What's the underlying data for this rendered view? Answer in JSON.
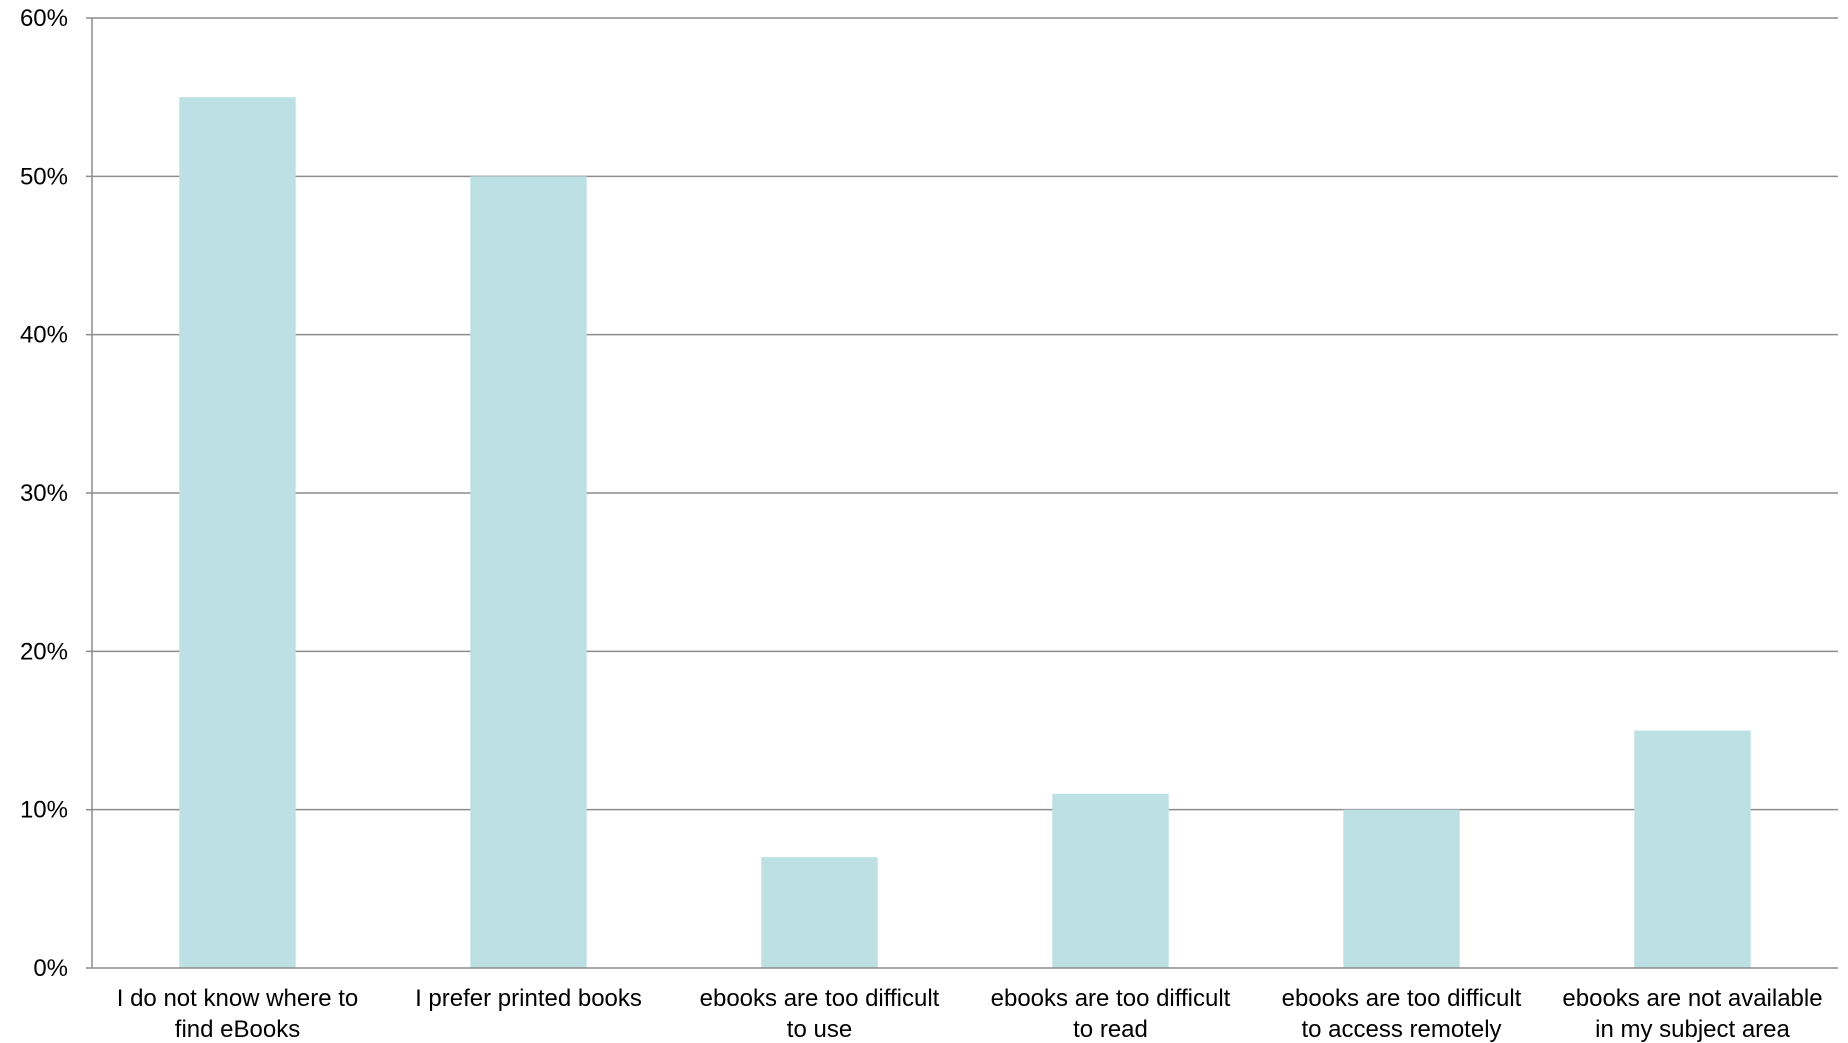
{
  "chart_data": {
    "type": "bar",
    "categories": [
      [
        "I do not know where to",
        "find eBooks"
      ],
      [
        "I prefer printed books"
      ],
      [
        "ebooks are too difficult",
        "to use"
      ],
      [
        "ebooks are too difficult",
        "to read"
      ],
      [
        "ebooks are too difficult",
        "to access remotely"
      ],
      [
        "ebooks are not available",
        "in my subject area"
      ]
    ],
    "values": [
      55,
      50,
      7,
      11,
      10,
      15
    ],
    "ylim": [
      0,
      60
    ],
    "yticks": [
      0,
      10,
      20,
      30,
      40,
      50,
      60
    ],
    "ytick_labels": [
      "0%",
      "10%",
      "20%",
      "30%",
      "40%",
      "50%",
      "60%"
    ],
    "grid": true,
    "bar_color": "#bce0e3",
    "grid_color": "#8c8c8c",
    "axis_color": "#8c8c8c",
    "title": "",
    "xlabel": "",
    "ylabel": ""
  }
}
